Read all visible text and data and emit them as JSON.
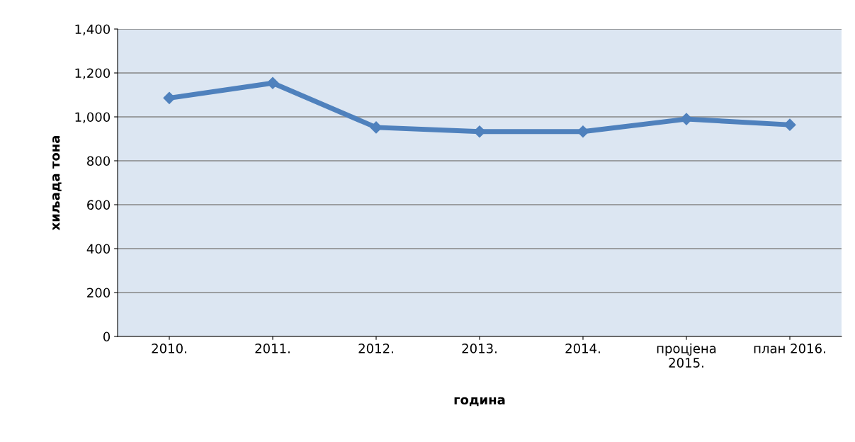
{
  "chart_data": {
    "type": "line",
    "xlabel": "година",
    "ylabel": "хиљада тона",
    "categories": [
      "2010.",
      "2011.",
      "2012.",
      "2013.",
      "2014.",
      "процјена\n2015.",
      "план 2016."
    ],
    "series": [
      {
        "color": "#4f81bd",
        "values": [
          1086,
          1154,
          952,
          933,
          933,
          990,
          964
        ]
      }
    ],
    "ylim": [
      0,
      1400
    ],
    "yticks": [
      {
        "value": 0,
        "label": "0"
      },
      {
        "value": 200,
        "label": "200"
      },
      {
        "value": 400,
        "label": "400"
      },
      {
        "value": 600,
        "label": "600"
      },
      {
        "value": 800,
        "label": "800"
      },
      {
        "value": 1000,
        "label": "1,000"
      },
      {
        "value": 1200,
        "label": "1,200"
      },
      {
        "value": 1400,
        "label": "1,400"
      }
    ],
    "grid": "y",
    "marker": "diamond",
    "line_style": "solid",
    "legend": false
  }
}
